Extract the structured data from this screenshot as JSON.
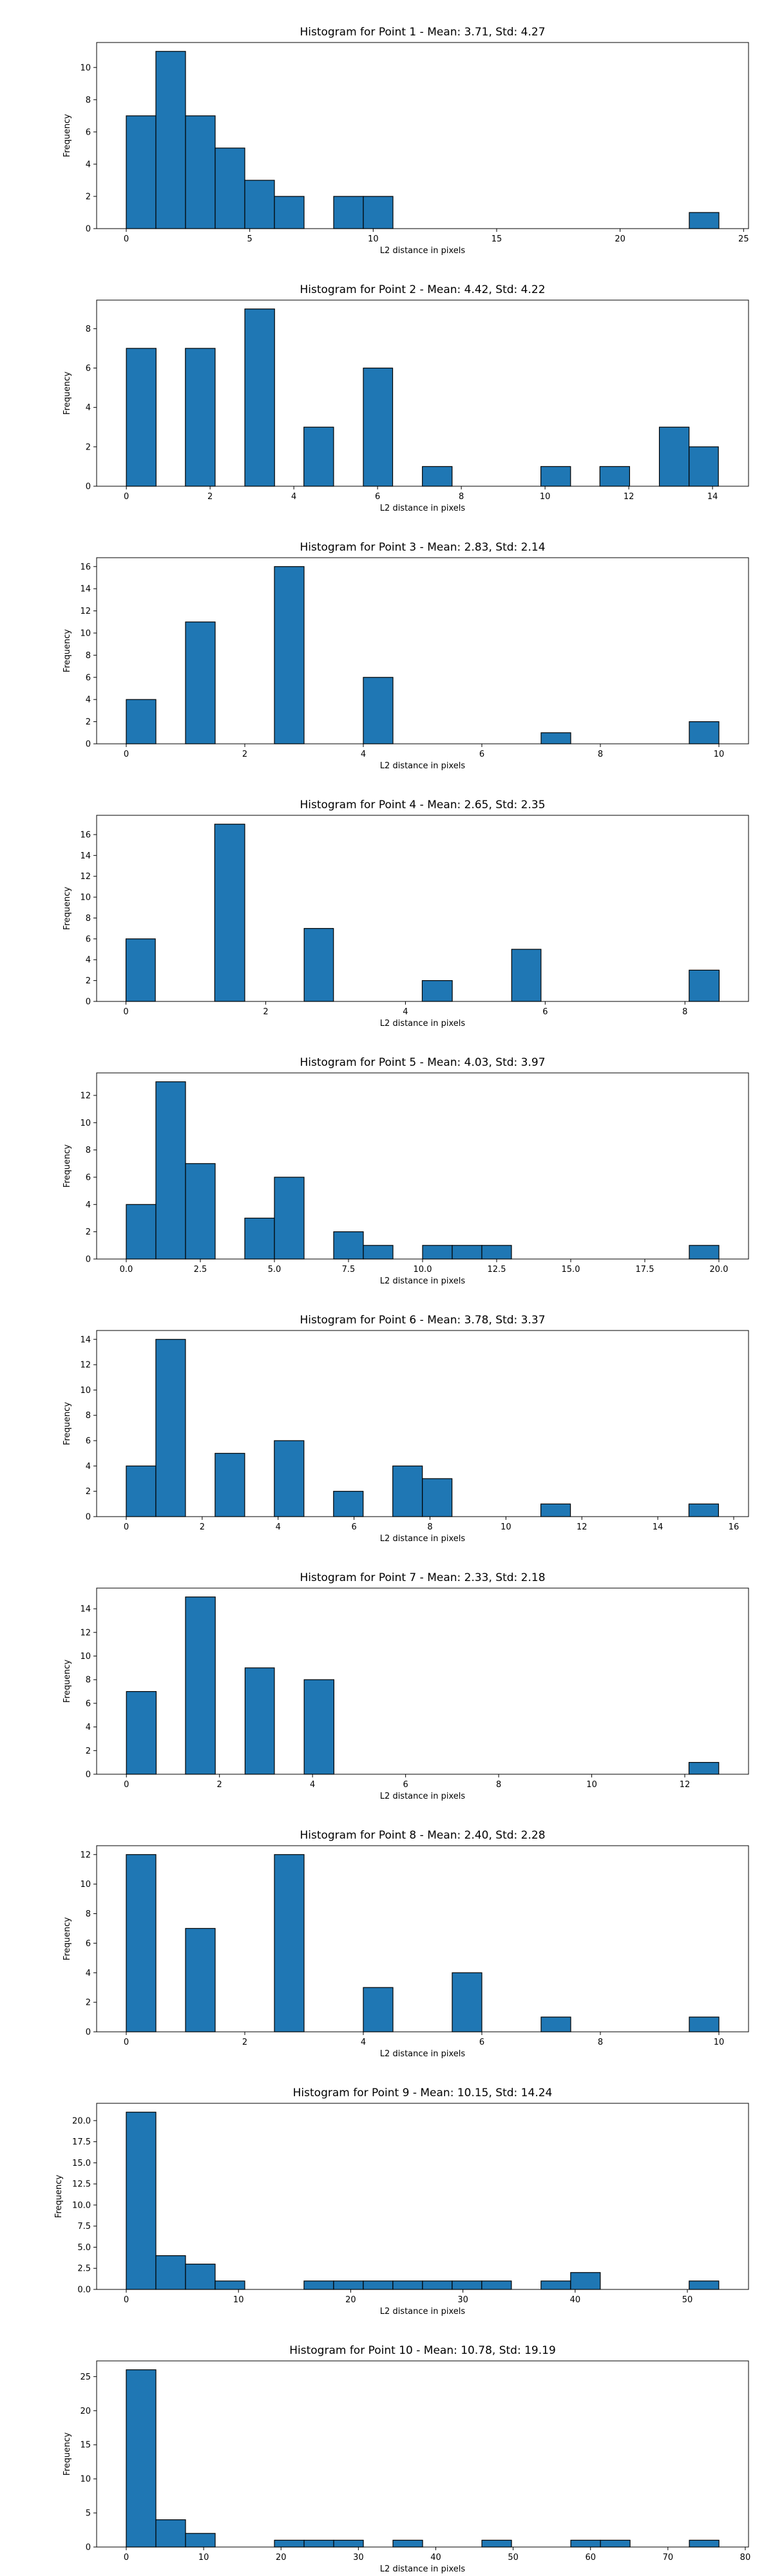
{
  "chart_data": [
    {
      "type": "bar",
      "title": "Histogram for Point 1 - Mean: 3.71, Std: 4.27",
      "xlabel": "L2 distance in pixels",
      "ylabel": "Frequency",
      "xlim": [
        -1.2,
        25.2
      ],
      "ylim": [
        0,
        11.55
      ],
      "xticks": [
        0,
        5,
        10,
        15,
        20,
        25
      ],
      "yticks": [
        0,
        2,
        4,
        6,
        8,
        10
      ],
      "bar_color": "#1f77b4",
      "bins": [
        {
          "x0": 0.0,
          "x1": 1.2,
          "count": 7
        },
        {
          "x0": 1.2,
          "x1": 2.4,
          "count": 11
        },
        {
          "x0": 2.4,
          "x1": 3.6,
          "count": 7
        },
        {
          "x0": 3.6,
          "x1": 4.8,
          "count": 5
        },
        {
          "x0": 4.8,
          "x1": 6.0,
          "count": 3
        },
        {
          "x0": 6.0,
          "x1": 7.2,
          "count": 2
        },
        {
          "x0": 8.4,
          "x1": 9.6,
          "count": 2
        },
        {
          "x0": 9.6,
          "x1": 10.8,
          "count": 2
        },
        {
          "x0": 22.8,
          "x1": 24.0,
          "count": 1
        }
      ]
    },
    {
      "type": "bar",
      "title": "Histogram for Point 2 - Mean: 4.42, Std: 4.22",
      "xlabel": "L2 distance in pixels",
      "ylabel": "Frequency",
      "xlim": [
        -0.71,
        14.86
      ],
      "ylim": [
        0,
        9.45
      ],
      "xticks": [
        0,
        2,
        4,
        6,
        8,
        10,
        12,
        14
      ],
      "yticks": [
        0,
        2,
        4,
        6,
        8
      ],
      "bar_color": "#1f77b4",
      "bins": [
        {
          "x0": 0.0,
          "x1": 0.71,
          "count": 7
        },
        {
          "x0": 1.41,
          "x1": 2.12,
          "count": 7
        },
        {
          "x0": 2.83,
          "x1": 3.54,
          "count": 9
        },
        {
          "x0": 4.24,
          "x1": 4.95,
          "count": 3
        },
        {
          "x0": 5.66,
          "x1": 6.36,
          "count": 6
        },
        {
          "x0": 7.07,
          "x1": 7.78,
          "count": 1
        },
        {
          "x0": 9.9,
          "x1": 10.61,
          "count": 1
        },
        {
          "x0": 11.31,
          "x1": 12.02,
          "count": 1
        },
        {
          "x0": 12.73,
          "x1": 13.44,
          "count": 3
        },
        {
          "x0": 13.44,
          "x1": 14.14,
          "count": 2
        }
      ]
    },
    {
      "type": "bar",
      "title": "Histogram for Point 3 - Mean: 2.83, Std: 2.14",
      "xlabel": "L2 distance in pixels",
      "ylabel": "Frequency",
      "xlim": [
        -0.5,
        10.5
      ],
      "ylim": [
        0,
        16.8
      ],
      "xticks": [
        0,
        2,
        4,
        6,
        8,
        10
      ],
      "yticks": [
        0,
        2,
        4,
        6,
        8,
        10,
        12,
        14,
        16
      ],
      "bar_color": "#1f77b4",
      "bins": [
        {
          "x0": 0.0,
          "x1": 0.5,
          "count": 4
        },
        {
          "x0": 1.0,
          "x1": 1.5,
          "count": 11
        },
        {
          "x0": 2.5,
          "x1": 3.0,
          "count": 16
        },
        {
          "x0": 4.0,
          "x1": 4.5,
          "count": 6
        },
        {
          "x0": 7.0,
          "x1": 7.5,
          "count": 1
        },
        {
          "x0": 9.5,
          "x1": 10.0,
          "count": 2
        }
      ]
    },
    {
      "type": "bar",
      "title": "Histogram for Point 4 - Mean: 2.65, Std: 2.35",
      "xlabel": "L2 distance in pixels",
      "ylabel": "Frequency",
      "xlim": [
        -0.42,
        8.91
      ],
      "ylim": [
        0,
        17.85
      ],
      "xticks": [
        0,
        2,
        4,
        6,
        8
      ],
      "yticks": [
        0,
        2,
        4,
        6,
        8,
        10,
        12,
        14,
        16
      ],
      "bar_color": "#1f77b4",
      "bins": [
        {
          "x0": 0.0,
          "x1": 0.42,
          "count": 6
        },
        {
          "x0": 1.27,
          "x1": 1.7,
          "count": 17
        },
        {
          "x0": 2.55,
          "x1": 2.97,
          "count": 7
        },
        {
          "x0": 4.24,
          "x1": 4.67,
          "count": 2
        },
        {
          "x0": 5.52,
          "x1": 5.94,
          "count": 5
        },
        {
          "x0": 8.06,
          "x1": 8.49,
          "count": 3
        }
      ]
    },
    {
      "type": "bar",
      "title": "Histogram for Point 5 - Mean: 4.03, Std: 3.97",
      "xlabel": "L2 distance in pixels",
      "ylabel": "Frequency",
      "xlim": [
        -1.0,
        21.0
      ],
      "ylim": [
        0,
        13.65
      ],
      "xticks": [
        0.0,
        2.5,
        5.0,
        7.5,
        10.0,
        12.5,
        15.0,
        17.5,
        20.0
      ],
      "xtick_labels": [
        "0.0",
        "2.5",
        "5.0",
        "7.5",
        "10.0",
        "12.5",
        "15.0",
        "17.5",
        "20.0"
      ],
      "yticks": [
        0,
        2,
        4,
        6,
        8,
        10,
        12
      ],
      "bar_color": "#1f77b4",
      "bins": [
        {
          "x0": 0.0,
          "x1": 1.0,
          "count": 4
        },
        {
          "x0": 1.0,
          "x1": 2.0,
          "count": 13
        },
        {
          "x0": 2.0,
          "x1": 3.0,
          "count": 7
        },
        {
          "x0": 4.0,
          "x1": 5.0,
          "count": 3
        },
        {
          "x0": 5.0,
          "x1": 6.0,
          "count": 6
        },
        {
          "x0": 7.0,
          "x1": 8.0,
          "count": 2
        },
        {
          "x0": 8.0,
          "x1": 9.0,
          "count": 1
        },
        {
          "x0": 10.0,
          "x1": 11.0,
          "count": 1
        },
        {
          "x0": 11.0,
          "x1": 12.0,
          "count": 1
        },
        {
          "x0": 12.0,
          "x1": 13.0,
          "count": 1
        },
        {
          "x0": 19.0,
          "x1": 20.0,
          "count": 1
        }
      ]
    },
    {
      "type": "bar",
      "title": "Histogram for Point 6 - Mean: 3.78, Std: 3.37",
      "xlabel": "L2 distance in pixels",
      "ylabel": "Frequency",
      "xlim": [
        -0.78,
        16.39
      ],
      "ylim": [
        0,
        14.7
      ],
      "xticks": [
        0,
        2,
        4,
        6,
        8,
        10,
        12,
        14,
        16
      ],
      "yticks": [
        0,
        2,
        4,
        6,
        8,
        10,
        12,
        14
      ],
      "bar_color": "#1f77b4",
      "bins": [
        {
          "x0": 0.0,
          "x1": 0.78,
          "count": 4
        },
        {
          "x0": 0.78,
          "x1": 1.56,
          "count": 14
        },
        {
          "x0": 2.34,
          "x1": 3.12,
          "count": 5
        },
        {
          "x0": 3.9,
          "x1": 4.68,
          "count": 6
        },
        {
          "x0": 5.46,
          "x1": 6.24,
          "count": 2
        },
        {
          "x0": 7.02,
          "x1": 7.8,
          "count": 4
        },
        {
          "x0": 7.8,
          "x1": 8.58,
          "count": 3
        },
        {
          "x0": 10.92,
          "x1": 11.7,
          "count": 1
        },
        {
          "x0": 14.82,
          "x1": 15.6,
          "count": 1
        }
      ]
    },
    {
      "type": "bar",
      "title": "Histogram for Point 7 - Mean: 2.33, Std: 2.18",
      "xlabel": "L2 distance in pixels",
      "ylabel": "Frequency",
      "xlim": [
        -0.64,
        13.37
      ],
      "ylim": [
        0,
        15.75
      ],
      "xticks": [
        0,
        2,
        4,
        6,
        8,
        10,
        12
      ],
      "yticks": [
        0,
        2,
        4,
        6,
        8,
        10,
        12,
        14
      ],
      "bar_color": "#1f77b4",
      "bins": [
        {
          "x0": 0.0,
          "x1": 0.64,
          "count": 7
        },
        {
          "x0": 1.27,
          "x1": 1.91,
          "count": 15
        },
        {
          "x0": 2.55,
          "x1": 3.18,
          "count": 9
        },
        {
          "x0": 3.82,
          "x1": 4.46,
          "count": 8
        },
        {
          "x0": 12.09,
          "x1": 12.73,
          "count": 1
        }
      ]
    },
    {
      "type": "bar",
      "title": "Histogram for Point 8 - Mean: 2.40, Std: 2.28",
      "xlabel": "L2 distance in pixels",
      "ylabel": "Frequency",
      "xlim": [
        -0.5,
        10.5
      ],
      "ylim": [
        0,
        12.6
      ],
      "xticks": [
        0,
        2,
        4,
        6,
        8,
        10
      ],
      "yticks": [
        0,
        2,
        4,
        6,
        8,
        10,
        12
      ],
      "bar_color": "#1f77b4",
      "bins": [
        {
          "x0": 0.0,
          "x1": 0.5,
          "count": 12
        },
        {
          "x0": 1.0,
          "x1": 1.5,
          "count": 7
        },
        {
          "x0": 2.5,
          "x1": 3.0,
          "count": 12
        },
        {
          "x0": 4.0,
          "x1": 4.5,
          "count": 3
        },
        {
          "x0": 5.5,
          "x1": 6.0,
          "count": 4
        },
        {
          "x0": 7.0,
          "x1": 7.5,
          "count": 1
        },
        {
          "x0": 9.5,
          "x1": 10.0,
          "count": 1
        }
      ]
    },
    {
      "type": "bar",
      "title": "Histogram for Point 9 - Mean: 10.15, Std: 14.24",
      "xlabel": "L2 distance in pixels",
      "ylabel": "Frequency",
      "xlim": [
        -2.64,
        55.45
      ],
      "ylim": [
        0,
        22.05
      ],
      "xticks": [
        0,
        10,
        20,
        30,
        40,
        50
      ],
      "yticks": [
        0.0,
        2.5,
        5.0,
        7.5,
        10.0,
        12.5,
        15.0,
        17.5,
        20.0
      ],
      "ytick_labels": [
        "0.0",
        "2.5",
        "5.0",
        "7.5",
        "10.0",
        "12.5",
        "15.0",
        "17.5",
        "20.0"
      ],
      "bar_color": "#1f77b4",
      "bins": [
        {
          "x0": 0.0,
          "x1": 2.64,
          "count": 21
        },
        {
          "x0": 2.64,
          "x1": 5.28,
          "count": 4
        },
        {
          "x0": 5.28,
          "x1": 7.92,
          "count": 3
        },
        {
          "x0": 7.92,
          "x1": 10.56,
          "count": 1
        },
        {
          "x0": 15.84,
          "x1": 18.48,
          "count": 1
        },
        {
          "x0": 18.48,
          "x1": 21.12,
          "count": 1
        },
        {
          "x0": 21.12,
          "x1": 23.76,
          "count": 1
        },
        {
          "x0": 23.76,
          "x1": 26.4,
          "count": 1
        },
        {
          "x0": 26.4,
          "x1": 29.04,
          "count": 1
        },
        {
          "x0": 29.04,
          "x1": 31.68,
          "count": 1
        },
        {
          "x0": 31.68,
          "x1": 34.32,
          "count": 1
        },
        {
          "x0": 36.96,
          "x1": 39.6,
          "count": 1
        },
        {
          "x0": 39.6,
          "x1": 42.24,
          "count": 2
        },
        {
          "x0": 50.16,
          "x1": 52.8,
          "count": 1
        }
      ]
    },
    {
      "type": "bar",
      "title": "Histogram for Point 10 - Mean: 10.78, Std: 19.19",
      "xlabel": "L2 distance in pixels",
      "ylabel": "Frequency",
      "xlim": [
        -3.83,
        80.42
      ],
      "ylim": [
        0,
        27.3
      ],
      "xticks": [
        0,
        10,
        20,
        30,
        40,
        50,
        60,
        70,
        80
      ],
      "yticks": [
        0,
        5,
        10,
        15,
        20,
        25
      ],
      "bar_color": "#1f77b4",
      "bins": [
        {
          "x0": 0.0,
          "x1": 3.83,
          "count": 26
        },
        {
          "x0": 3.83,
          "x1": 7.66,
          "count": 4
        },
        {
          "x0": 7.66,
          "x1": 11.49,
          "count": 2
        },
        {
          "x0": 19.15,
          "x1": 22.98,
          "count": 1
        },
        {
          "x0": 22.98,
          "x1": 26.81,
          "count": 1
        },
        {
          "x0": 26.81,
          "x1": 30.64,
          "count": 1
        },
        {
          "x0": 34.47,
          "x1": 38.3,
          "count": 1
        },
        {
          "x0": 45.96,
          "x1": 49.79,
          "count": 1
        },
        {
          "x0": 57.45,
          "x1": 61.28,
          "count": 1
        },
        {
          "x0": 61.28,
          "x1": 65.11,
          "count": 1
        },
        {
          "x0": 72.77,
          "x1": 76.6,
          "count": 1
        }
      ]
    }
  ]
}
